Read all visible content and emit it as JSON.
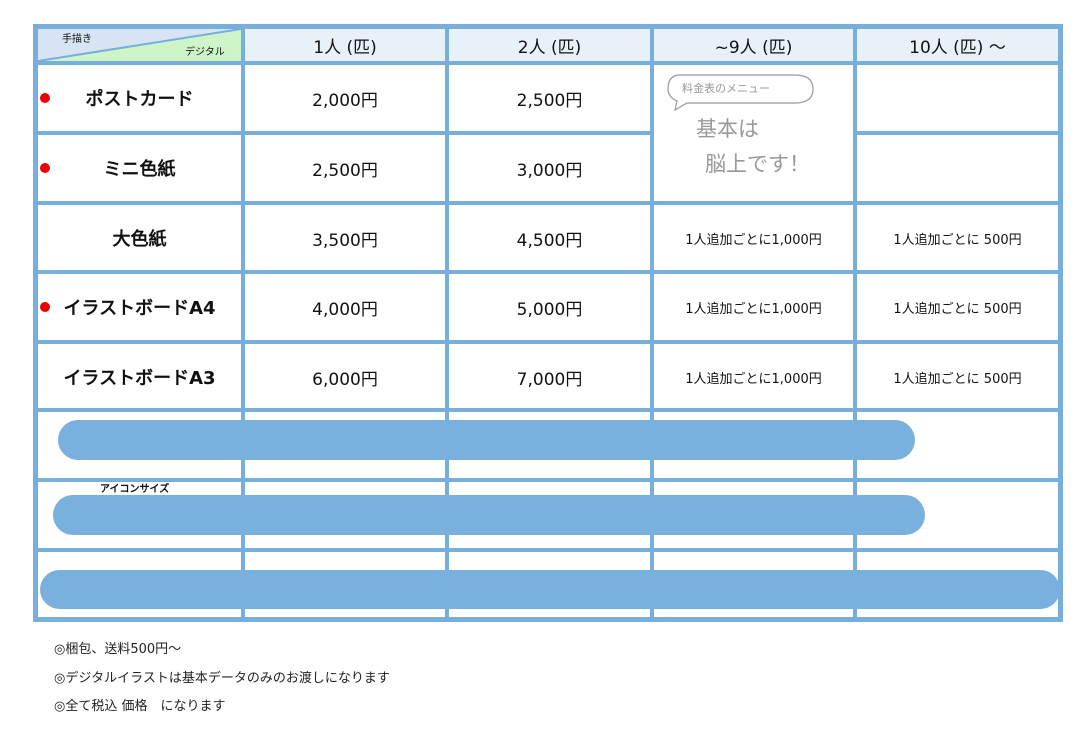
{
  "header": {
    "corner_top": "手描き",
    "corner_bottom": "デジタル",
    "cols": [
      "1人 (匹)",
      "2人 (匹)",
      "~9人 (匹)",
      "10人 (匹) 〜"
    ]
  },
  "rows": [
    {
      "name": "ポストカード",
      "p1": "2,000円",
      "p2": "2,500円",
      "p9": "",
      "p10": "",
      "marked": true
    },
    {
      "name": "ミニ色紙",
      "p1": "2,500円",
      "p2": "3,000円",
      "p9": "",
      "p10": "",
      "marked": true
    },
    {
      "name": "大色紙",
      "p1": "3,500円",
      "p2": "4,500円",
      "p9": "1人追加ごとに1,000円",
      "p10": "1人追加ごとに 500円",
      "marked": false
    },
    {
      "name": "イラストボードA4",
      "p1": "4,000円",
      "p2": "5,000円",
      "p9": "1人追加ごとに1,000円",
      "p10": "1人追加ごとに 500円",
      "marked": true
    },
    {
      "name": "イラストボードA3",
      "p1": "6,000円",
      "p2": "7,000円",
      "p9": "1人追加ごとに1,000円",
      "p10": "1人追加ごとに 500円",
      "marked": false
    }
  ],
  "row7_label": "アイコンサイズ",
  "handwritten": {
    "bubble": "料金表のメニュー",
    "line1": "基本は",
    "line2": "脳上です！"
  },
  "notes": [
    "◎梱包、送料500円〜",
    "◎デジタルイラストは基本データのみのお渡しになります",
    "◎全て税込 価格　になります"
  ],
  "colors": {
    "grid": "#78aedc",
    "redaction": "#79b0dd",
    "marker": "#ee0000"
  }
}
